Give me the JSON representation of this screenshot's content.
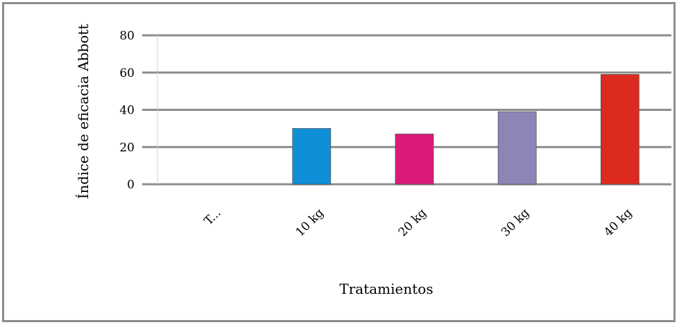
{
  "chart_data": {
    "type": "bar",
    "title": "",
    "xlabel": "Tratamientos",
    "ylabel": "Índice de eficacia Abbott",
    "categories": [
      "T...",
      "10 kg",
      "20 kg",
      "30 kg",
      "40 kg"
    ],
    "values": [
      0,
      30,
      27,
      39,
      59
    ],
    "colors": [
      "#ffffff",
      "#0f8fd8",
      "#dc1a7a",
      "#8d85b6",
      "#dc2a1e"
    ],
    "ylim": [
      0,
      80
    ],
    "yticks": [
      0,
      20,
      40,
      60,
      80
    ],
    "grid": true,
    "legend": "none"
  }
}
